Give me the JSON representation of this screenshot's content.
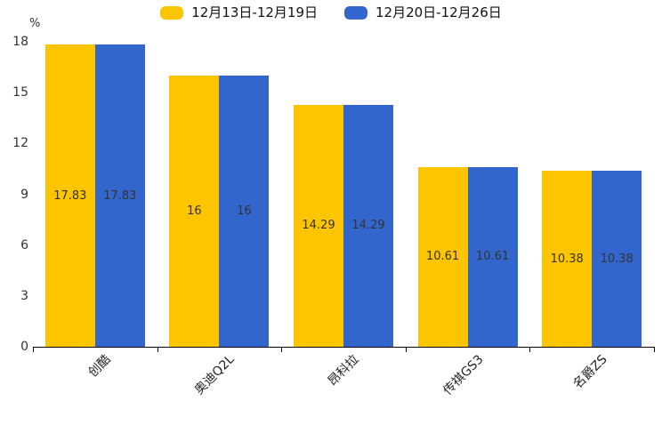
{
  "chart_data": {
    "type": "bar",
    "title": "",
    "categories": [
      "创酷",
      "奥迪Q2L",
      "昂科拉",
      "传祺GS3",
      "名爵ZS"
    ],
    "series": [
      {
        "name": "12月13日-12月19日",
        "color": "#FDC500",
        "values": [
          17.83,
          16,
          14.29,
          10.61,
          10.38
        ]
      },
      {
        "name": "12月20日-12月26日",
        "color": "#3366CC",
        "values": [
          17.83,
          16,
          14.29,
          10.61,
          10.38
        ]
      }
    ],
    "value_label_color": "#333333",
    "xlabel": "",
    "ylabel": "%",
    "yticks": [
      0,
      3,
      6,
      9,
      12,
      15,
      18
    ],
    "ylim": [
      0,
      18
    ],
    "grid": false,
    "legend_position": "top",
    "bar_value_labels_shown": true,
    "axis_color": "#000000"
  }
}
